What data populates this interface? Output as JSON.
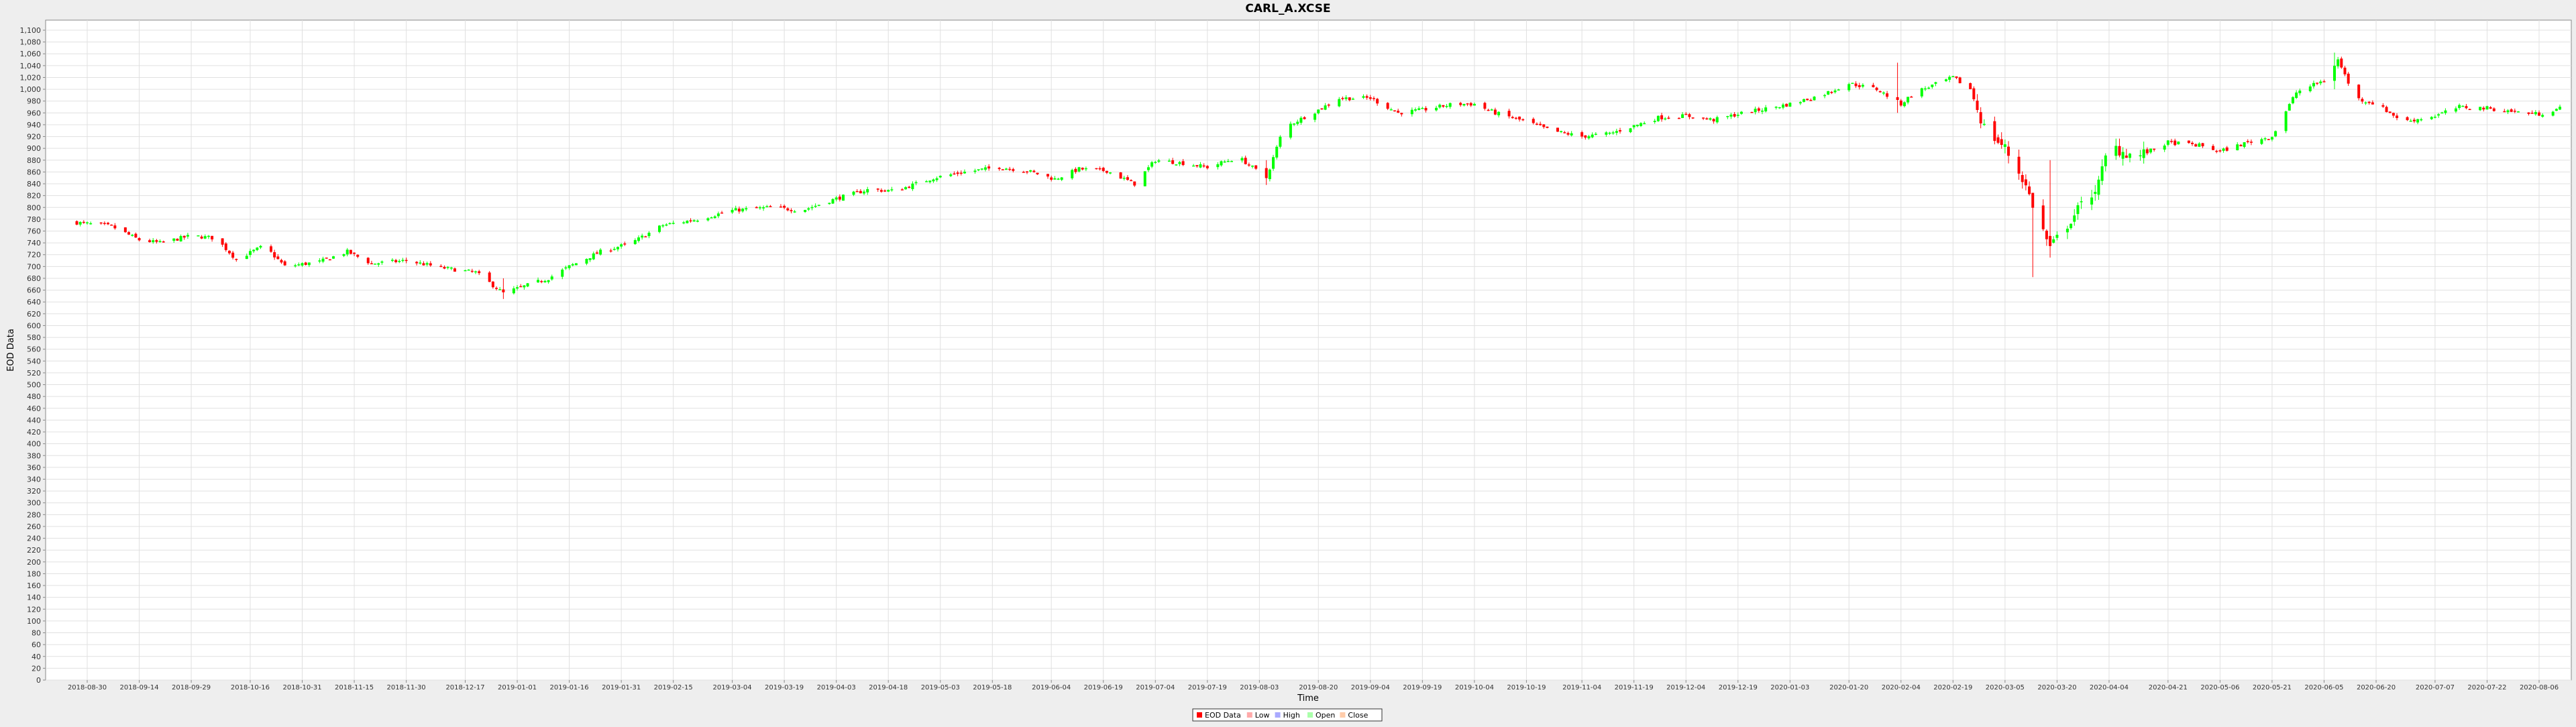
{
  "chart_data": {
    "type": "candlestick",
    "title": "CARL_A.XCSE",
    "xlabel": "Time",
    "ylabel": "EOD Data",
    "ylim": [
      0,
      1100
    ],
    "y_ticks": [
      0,
      20,
      40,
      60,
      80,
      100,
      120,
      140,
      160,
      180,
      200,
      220,
      240,
      260,
      280,
      300,
      320,
      340,
      360,
      380,
      400,
      420,
      440,
      460,
      480,
      500,
      520,
      540,
      560,
      580,
      600,
      620,
      640,
      660,
      680,
      700,
      720,
      740,
      760,
      780,
      800,
      820,
      840,
      860,
      880,
      900,
      920,
      940,
      960,
      980,
      1000,
      1020,
      1040,
      1060,
      1080,
      1100
    ],
    "y_tick_labels": [
      "0",
      "20",
      "40",
      "60",
      "80",
      "100",
      "120",
      "140",
      "160",
      "180",
      "200",
      "220",
      "240",
      "260",
      "280",
      "300",
      "320",
      "340",
      "360",
      "380",
      "400",
      "420",
      "440",
      "460",
      "480",
      "500",
      "520",
      "540",
      "560",
      "580",
      "600",
      "620",
      "640",
      "660",
      "680",
      "700",
      "720",
      "740",
      "760",
      "780",
      "800",
      "820",
      "840",
      "860",
      "880",
      "900",
      "920",
      "940",
      "960",
      "980",
      "1,000",
      "1,020",
      "1,040",
      "1,060",
      "1,080",
      "1,100"
    ],
    "x_tick_labels": [
      "2018-08-30",
      "2018-09-14",
      "2018-09-29",
      "2018-10-16",
      "2018-10-31",
      "2018-11-15",
      "2018-11-30",
      "2018-12-17",
      "2019-01-01",
      "2019-01-16",
      "2019-01-31",
      "2019-02-15",
      "2019-03-04",
      "2019-03-19",
      "2019-04-03",
      "2019-04-18",
      "2019-05-03",
      "2019-05-18",
      "2019-06-04",
      "2019-06-19",
      "2019-07-04",
      "2019-07-19",
      "2019-08-03",
      "2019-08-20",
      "2019-09-04",
      "2019-09-19",
      "2019-10-04",
      "2019-10-19",
      "2019-11-04",
      "2019-11-19",
      "2019-12-04",
      "2019-12-19",
      "2020-01-03",
      "2020-01-20",
      "2020-02-04",
      "2020-02-19",
      "2020-03-05",
      "2020-03-20",
      "2020-04-04",
      "2020-04-21",
      "2020-05-06",
      "2020-05-21",
      "2020-06-05",
      "2020-06-20",
      "2020-07-07",
      "2020-07-22",
      "2020-08-06"
    ],
    "grid": true,
    "legend": {
      "position": "bottom-center",
      "entries": [
        {
          "label": "EOD Data",
          "color": "#ff0000"
        },
        {
          "label": "Low",
          "color": "#ffaaaa"
        },
        {
          "label": "High",
          "color": "#aaaaff"
        },
        {
          "label": "Open",
          "color": "#aaffaa"
        },
        {
          "label": "Close",
          "color": "#ffccaa"
        }
      ]
    },
    "colors": {
      "up": "#00ff00",
      "down": "#ff0000",
      "grid": "#e0e0e0",
      "background": "#ffffff"
    },
    "close_path": [
      [
        "2018-08-26",
        775
      ],
      [
        "2018-09-06",
        768
      ],
      [
        "2018-09-14",
        745
      ],
      [
        "2018-09-20",
        740
      ],
      [
        "2018-09-29",
        752
      ],
      [
        "2018-10-06",
        748
      ],
      [
        "2018-10-12",
        712
      ],
      [
        "2018-10-20",
        735
      ],
      [
        "2018-10-26",
        700
      ],
      [
        "2018-11-05",
        708
      ],
      [
        "2018-11-13",
        725
      ],
      [
        "2018-11-20",
        705
      ],
      [
        "2018-11-30",
        710
      ],
      [
        "2018-12-10",
        698
      ],
      [
        "2018-12-20",
        690
      ],
      [
        "2018-12-28",
        655
      ],
      [
        "2019-01-10",
        680
      ],
      [
        "2019-01-16",
        700
      ],
      [
        "2019-01-25",
        725
      ],
      [
        "2019-02-03",
        740
      ],
      [
        "2019-02-12",
        770
      ],
      [
        "2019-02-22",
        780
      ],
      [
        "2019-03-04",
        795
      ],
      [
        "2019-03-15",
        800
      ],
      [
        "2019-03-24",
        795
      ],
      [
        "2019-04-03",
        815
      ],
      [
        "2019-04-12",
        830
      ],
      [
        "2019-04-20",
        828
      ],
      [
        "2019-05-01",
        850
      ],
      [
        "2019-05-10",
        860
      ],
      [
        "2019-05-20",
        868
      ],
      [
        "2019-05-28",
        862
      ],
      [
        "2019-06-05",
        848
      ],
      [
        "2019-06-12",
        865
      ],
      [
        "2019-06-20",
        862
      ],
      [
        "2019-06-28",
        840
      ],
      [
        "2019-07-04",
        880
      ],
      [
        "2019-07-12",
        875
      ],
      [
        "2019-07-19",
        868
      ],
      [
        "2019-07-28",
        885
      ],
      [
        "2019-08-05",
        850
      ],
      [
        "2019-08-10",
        935
      ],
      [
        "2019-08-20",
        965
      ],
      [
        "2019-08-26",
        985
      ],
      [
        "2019-09-04",
        985
      ],
      [
        "2019-09-12",
        960
      ],
      [
        "2019-09-19",
        965
      ],
      [
        "2019-09-28",
        975
      ],
      [
        "2019-10-04",
        975
      ],
      [
        "2019-10-10",
        960
      ],
      [
        "2019-10-19",
        945
      ],
      [
        "2019-10-26",
        930
      ],
      [
        "2019-11-04",
        920
      ],
      [
        "2019-11-12",
        925
      ],
      [
        "2019-11-19",
        938
      ],
      [
        "2019-11-26",
        952
      ],
      [
        "2019-12-04",
        955
      ],
      [
        "2019-12-12",
        948
      ],
      [
        "2019-12-19",
        958
      ],
      [
        "2020-01-03",
        975
      ],
      [
        "2020-01-12",
        990
      ],
      [
        "2020-01-20",
        1010
      ],
      [
        "2020-01-28",
        1000
      ],
      [
        "2020-02-04",
        975
      ],
      [
        "2020-02-08",
        995
      ],
      [
        "2020-02-19",
        1020
      ],
      [
        "2020-02-24",
        1000
      ],
      [
        "2020-02-28",
        935
      ],
      [
        "2020-03-05",
        900
      ],
      [
        "2020-03-10",
        850
      ],
      [
        "2020-03-14",
        790
      ],
      [
        "2020-03-18",
        730
      ],
      [
        "2020-03-24",
        780
      ],
      [
        "2020-04-01",
        840
      ],
      [
        "2020-04-04",
        905
      ],
      [
        "2020-04-12",
        885
      ],
      [
        "2020-04-21",
        910
      ],
      [
        "2020-04-30",
        905
      ],
      [
        "2020-05-06",
        895
      ],
      [
        "2020-05-14",
        910
      ],
      [
        "2020-05-21",
        920
      ],
      [
        "2020-05-28",
        995
      ],
      [
        "2020-06-05",
        1015
      ],
      [
        "2020-06-09",
        1050
      ],
      [
        "2020-06-14",
        985
      ],
      [
        "2020-06-20",
        975
      ],
      [
        "2020-06-28",
        945
      ],
      [
        "2020-07-07",
        955
      ],
      [
        "2020-07-14",
        970
      ],
      [
        "2020-07-22",
        968
      ],
      [
        "2020-07-30",
        962
      ],
      [
        "2020-08-06",
        958
      ],
      [
        "2020-08-12",
        968
      ]
    ],
    "extreme_wicks": [
      {
        "date": "2018-12-28",
        "low": 645,
        "high": 680
      },
      {
        "date": "2019-08-05",
        "low": 838,
        "high": 880
      },
      {
        "date": "2020-02-03",
        "low": 960,
        "high": 1045
      },
      {
        "date": "2020-03-13",
        "low": 682,
        "high": 800
      },
      {
        "date": "2020-03-18",
        "low": 715,
        "high": 880
      },
      {
        "date": "2020-03-22",
        "low": 740,
        "high": 830
      },
      {
        "date": "2020-06-08",
        "low": 1000,
        "high": 1062
      }
    ]
  }
}
